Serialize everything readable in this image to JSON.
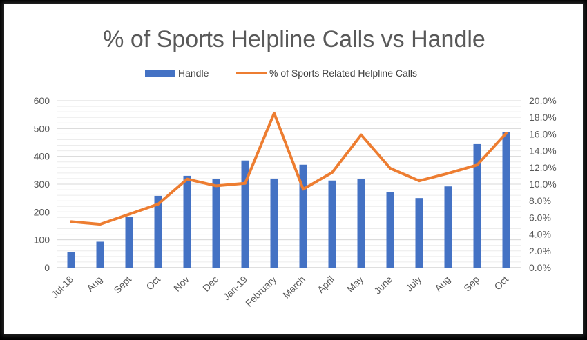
{
  "chart_data": {
    "type": "bar",
    "title": "% of Sports Helpline Calls vs Handle",
    "categories": [
      "Jul-18",
      "Aug",
      "Sept",
      "Oct",
      "Nov",
      "Dec",
      "Jan-19",
      "February",
      "March",
      "April",
      "May",
      "June",
      "July",
      "Aug",
      "Sep",
      "Oct"
    ],
    "series": [
      {
        "name": "Handle",
        "type": "bar",
        "axis": "left",
        "color": "#4472C4",
        "values": [
          55,
          93,
          183,
          258,
          330,
          318,
          385,
          320,
          370,
          313,
          318,
          272,
          250,
          292,
          444,
          487
        ]
      },
      {
        "name": "% of Sports Related Helpline Calls",
        "type": "line",
        "axis": "right",
        "color": "#ED7D31",
        "values": [
          5.5,
          5.2,
          6.4,
          7.6,
          10.6,
          9.8,
          10.1,
          18.5,
          9.4,
          11.4,
          15.9,
          11.9,
          10.4,
          11.3,
          12.3,
          16.1
        ]
      }
    ],
    "y_left": {
      "min": 0,
      "max": 600,
      "step": 100,
      "tick_labels": [
        "0",
        "100",
        "200",
        "300",
        "400",
        "500",
        "600"
      ]
    },
    "y_right": {
      "min": 0,
      "max": 20,
      "step": 2,
      "tick_labels": [
        "0.0%",
        "2.0%",
        "4.0%",
        "6.0%",
        "8.0%",
        "10.0%",
        "12.0%",
        "14.0%",
        "16.0%",
        "18.0%",
        "20.0%"
      ]
    },
    "grid": true,
    "legend_position": "top"
  }
}
